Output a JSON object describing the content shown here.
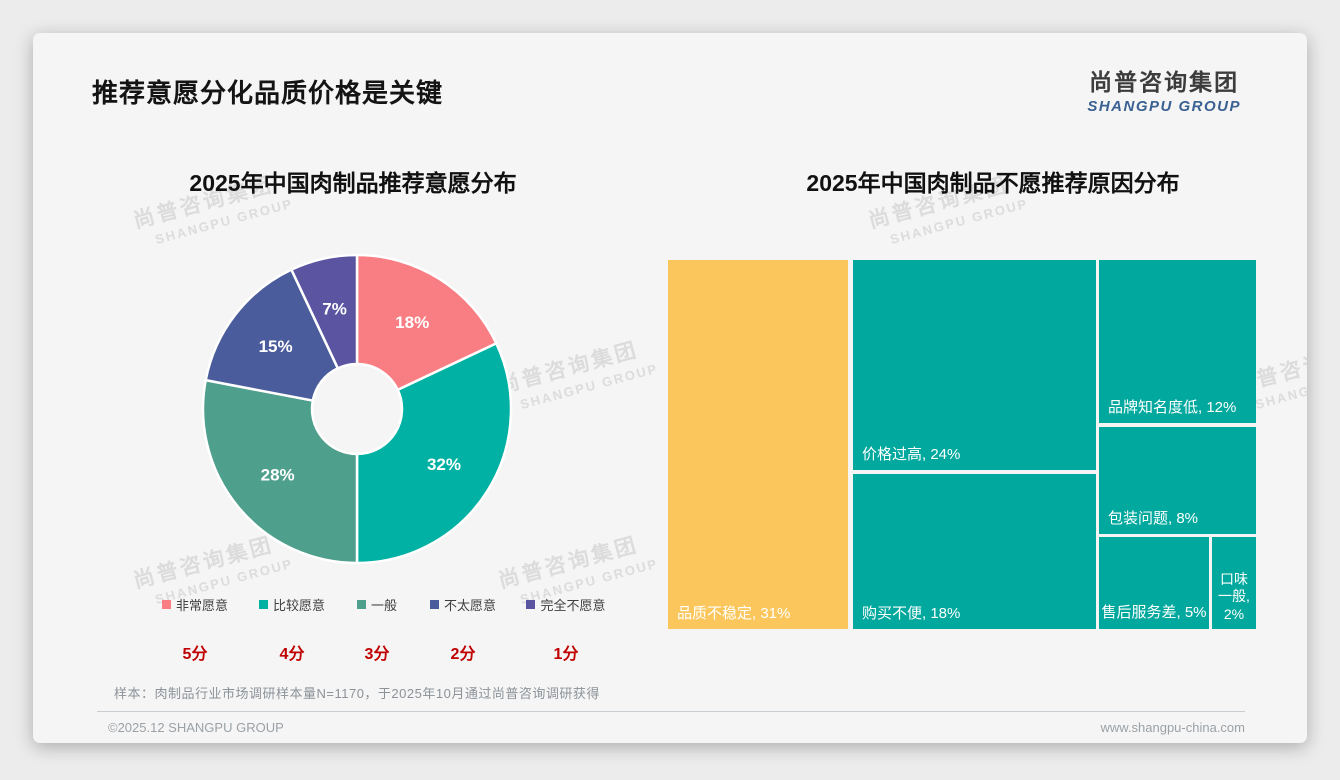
{
  "page": {
    "title": "推荐意愿分化品质价格是关键",
    "logo": {
      "cn": "尚普咨询集团",
      "en": "SHANGPU GROUP"
    },
    "watermark": {
      "cn": "尚普咨询集团",
      "en": "SHANGPU GROUP"
    },
    "footnote": "样本：肉制品行业市场调研样本量N=1170，于2025年10月通过尚普咨询调研获得",
    "footer_left": "©2025.12 SHANGPU GROUP",
    "footer_right": "www.shangpu-china.com"
  },
  "colors": {
    "card_bg": "#F5F5F5",
    "score_red": "#C00000",
    "treemap_teal": "#00A89D",
    "treemap_yellow": "#FBC75D"
  },
  "chart_data": [
    {
      "type": "pie",
      "subtype": "donut",
      "title": "2025年中国肉制品推荐意愿分布",
      "unit": "%",
      "start_angle_deg": 0,
      "direction": "clockwise",
      "legend_position": "bottom",
      "series": [
        {
          "label": "非常愿意",
          "score": "5分",
          "value": 18,
          "color": "#F87E84"
        },
        {
          "label": "比较愿意",
          "score": "4分",
          "value": 32,
          "color": "#00B1A4"
        },
        {
          "label": "一般",
          "score": "3分",
          "value": 28,
          "color": "#4F9F8D"
        },
        {
          "label": "不太愿意",
          "score": "2分",
          "value": 15,
          "color": "#4A5C9B"
        },
        {
          "label": "完全不愿意",
          "score": "1分",
          "value": 7,
          "color": "#5B54A1"
        }
      ]
    },
    {
      "type": "treemap",
      "title": "2025年中国肉制品不愿推荐原因分布",
      "unit": "%",
      "items": [
        {
          "label": "品质不稳定",
          "value": 31,
          "display": "品质不稳定, 31%",
          "color": "#FBC75D"
        },
        {
          "label": "价格过高",
          "value": 24,
          "display": "价格过高, 24%",
          "color": "#00A89D"
        },
        {
          "label": "购买不便",
          "value": 18,
          "display": "购买不便, 18%",
          "color": "#00A89D"
        },
        {
          "label": "品牌知名度低",
          "value": 12,
          "display": "品牌知名度低, 12%",
          "color": "#00A89D"
        },
        {
          "label": "包装问题",
          "value": 8,
          "display": "包装问题, 8%",
          "color": "#00A89D"
        },
        {
          "label": "售后服务差",
          "value": 5,
          "display": "售后服务差, 5%",
          "color": "#00A89D"
        },
        {
          "label": "口味一般",
          "value": 2,
          "display": "口味一般, 2%",
          "color": "#00A89D"
        }
      ]
    }
  ]
}
